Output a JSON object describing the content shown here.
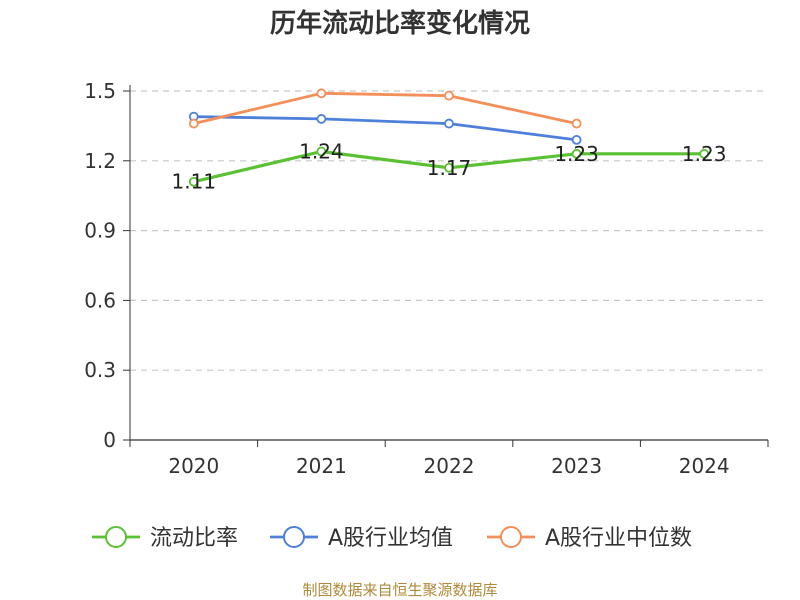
{
  "chart_data": {
    "type": "line",
    "title": "历年流动比率变化情况",
    "categories": [
      "2020",
      "2021",
      "2022",
      "2023",
      "2024"
    ],
    "ylim": [
      0,
      1.5
    ],
    "yticks": [
      "0",
      "0.3",
      "0.6",
      "0.9",
      "1.2",
      "1.5"
    ],
    "ytick_values": [
      0,
      0.3,
      0.6,
      0.9,
      1.2,
      1.5
    ],
    "grid": true,
    "legend_position": "bottom",
    "series": [
      {
        "name": "流动比率",
        "color": "#5ac133",
        "values": [
          1.11,
          1.24,
          1.17,
          1.23,
          1.23
        ],
        "labels": [
          "1.11",
          "1.24",
          "1.17",
          "1.23",
          "1.23"
        ]
      },
      {
        "name": "A股行业均值",
        "color": "#4e80db",
        "values": [
          1.39,
          1.38,
          1.36,
          1.29,
          null
        ]
      },
      {
        "name": "A股行业中位数",
        "color": "#f48f5a",
        "values": [
          1.36,
          1.49,
          1.48,
          1.36,
          null
        ]
      }
    ]
  },
  "footer": {
    "source": "制图数据来自恒生聚源数据库"
  }
}
